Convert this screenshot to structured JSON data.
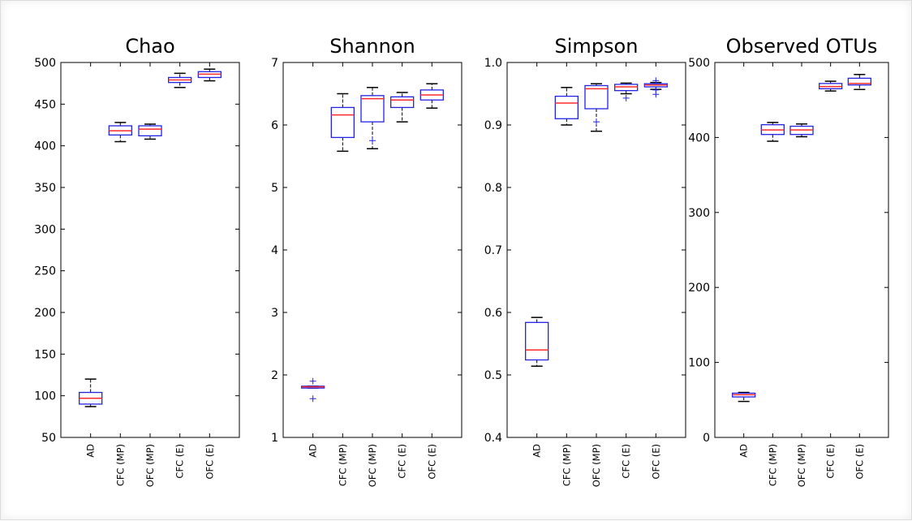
{
  "chart_data": [
    {
      "type": "box",
      "title": "Chao",
      "categories": [
        "AD",
        "CFC (MP)",
        "OFC (MP)",
        "CFC (E)",
        "OFC (E)"
      ],
      "yticks": [
        50,
        100,
        150,
        200,
        250,
        300,
        350,
        400,
        450,
        500
      ],
      "ylim": [
        50,
        500
      ],
      "boxes": [
        {
          "whisker_low": 87,
          "q1": 90,
          "median": 97,
          "q3": 104,
          "whisker_high": 120,
          "outliers": []
        },
        {
          "whisker_low": 405,
          "q1": 413,
          "median": 418,
          "q3": 424,
          "whisker_high": 428,
          "outliers": []
        },
        {
          "whisker_low": 408,
          "q1": 412,
          "median": 420,
          "q3": 424,
          "whisker_high": 426,
          "outliers": []
        },
        {
          "whisker_low": 470,
          "q1": 476,
          "median": 479,
          "q3": 482,
          "whisker_high": 487,
          "outliers": []
        },
        {
          "whisker_low": 478,
          "q1": 482,
          "median": 486,
          "q3": 489,
          "whisker_high": 492,
          "outliers": []
        }
      ]
    },
    {
      "type": "box",
      "title": "Shannon",
      "categories": [
        "AD",
        "CFC (MP)",
        "OFC (MP)",
        "CFC (E)",
        "OFC (E)"
      ],
      "yticks": [
        1,
        2,
        3,
        4,
        5,
        6,
        7
      ],
      "ylim": [
        1,
        7
      ],
      "boxes": [
        {
          "whisker_low": 1.79,
          "q1": 1.79,
          "median": 1.81,
          "q3": 1.82,
          "whisker_high": 1.82,
          "outliers": [
            1.62,
            1.9
          ]
        },
        {
          "whisker_low": 5.58,
          "q1": 5.8,
          "median": 6.16,
          "q3": 6.28,
          "whisker_high": 6.5,
          "outliers": []
        },
        {
          "whisker_low": 5.62,
          "q1": 6.05,
          "median": 6.42,
          "q3": 6.47,
          "whisker_high": 6.6,
          "outliers": [
            5.75
          ]
        },
        {
          "whisker_low": 6.05,
          "q1": 6.28,
          "median": 6.4,
          "q3": 6.45,
          "whisker_high": 6.52,
          "outliers": []
        },
        {
          "whisker_low": 6.27,
          "q1": 6.4,
          "median": 6.48,
          "q3": 6.56,
          "whisker_high": 6.66,
          "outliers": []
        }
      ]
    },
    {
      "type": "box",
      "title": "Simpson",
      "categories": [
        "AD",
        "CFC (MP)",
        "OFC (MP)",
        "CFC (E)",
        "OFC (E)"
      ],
      "yticks": [
        0.4,
        0.5,
        0.6,
        0.7,
        0.8,
        0.9,
        1.0
      ],
      "ylim": [
        0.4,
        1.0
      ],
      "boxes": [
        {
          "whisker_low": 0.514,
          "q1": 0.524,
          "median": 0.54,
          "q3": 0.584,
          "whisker_high": 0.592,
          "outliers": []
        },
        {
          "whisker_low": 0.9,
          "q1": 0.91,
          "median": 0.935,
          "q3": 0.946,
          "whisker_high": 0.96,
          "outliers": []
        },
        {
          "whisker_low": 0.89,
          "q1": 0.926,
          "median": 0.958,
          "q3": 0.963,
          "whisker_high": 0.966,
          "outliers": [
            0.905
          ]
        },
        {
          "whisker_low": 0.95,
          "q1": 0.955,
          "median": 0.961,
          "q3": 0.965,
          "whisker_high": 0.967,
          "outliers": [
            0.943
          ]
        },
        {
          "whisker_low": 0.957,
          "q1": 0.961,
          "median": 0.964,
          "q3": 0.966,
          "whisker_high": 0.968,
          "outliers": [
            0.949,
            0.956,
            0.971
          ]
        }
      ]
    },
    {
      "type": "box",
      "title": "Observed OTUs",
      "categories": [
        "AD",
        "CFC (MP)",
        "OFC (MP)",
        "CFC (E)",
        "OFC (E)"
      ],
      "yticks": [
        0,
        100,
        200,
        300,
        400,
        500
      ],
      "ylim": [
        0,
        500
      ],
      "boxes": [
        {
          "whisker_low": 48,
          "q1": 54,
          "median": 57,
          "q3": 59,
          "whisker_high": 60,
          "outliers": []
        },
        {
          "whisker_low": 395,
          "q1": 404,
          "median": 410,
          "q3": 417,
          "whisker_high": 420,
          "outliers": []
        },
        {
          "whisker_low": 401,
          "q1": 404,
          "median": 410,
          "q3": 415,
          "whisker_high": 418,
          "outliers": []
        },
        {
          "whisker_low": 462,
          "q1": 465,
          "median": 468,
          "q3": 472,
          "whisker_high": 475,
          "outliers": []
        },
        {
          "whisker_low": 464,
          "q1": 470,
          "median": 472,
          "q3": 479,
          "whisker_high": 484,
          "outliers": []
        }
      ]
    }
  ],
  "colors": {
    "box": "#2323e6",
    "median": "#ff2a2a",
    "whisker": "#000000",
    "outlier": "#2323e6",
    "axis": "#000000"
  }
}
